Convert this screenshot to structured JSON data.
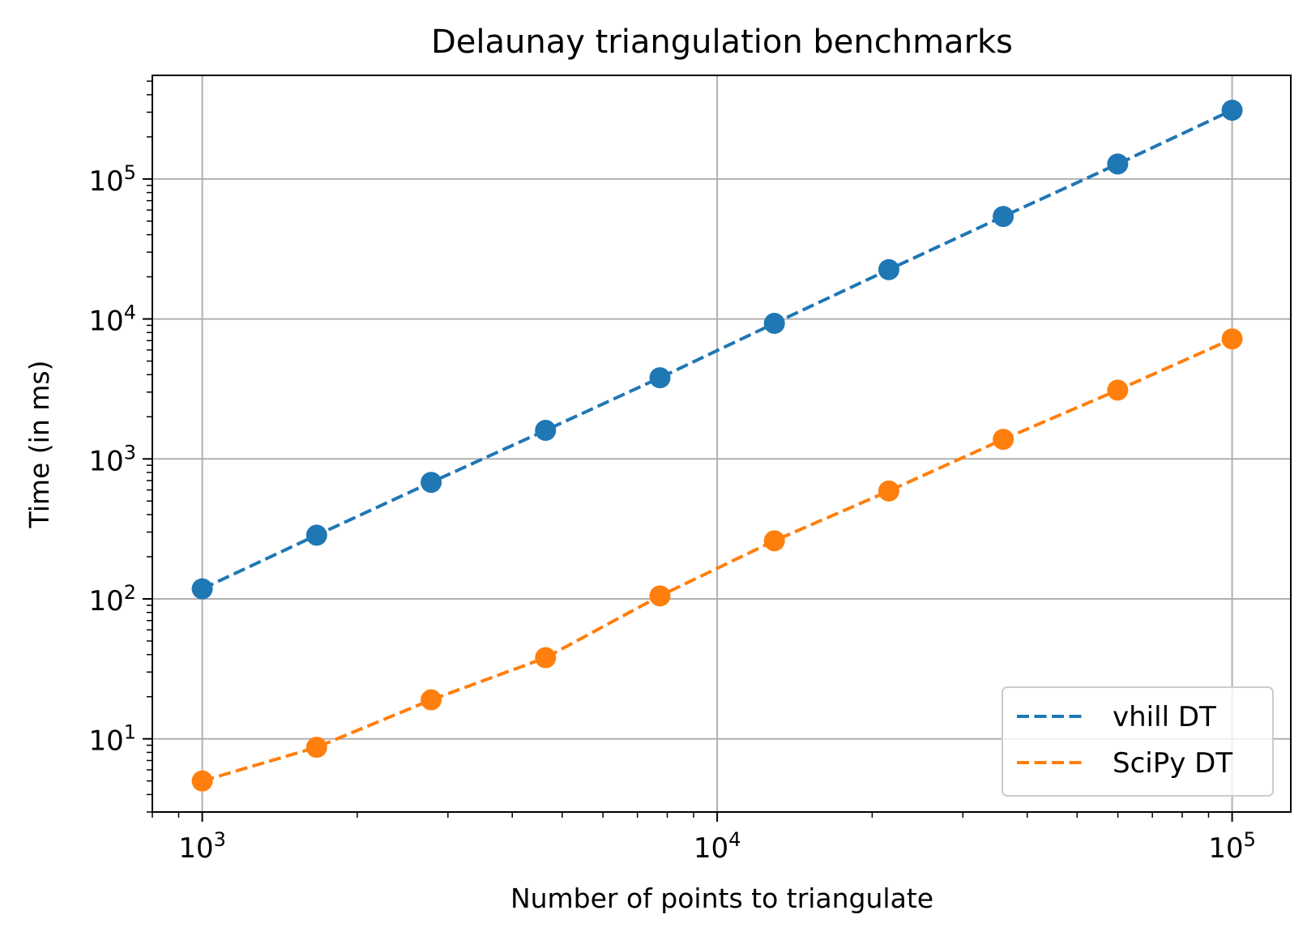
{
  "chart_data": {
    "type": "line",
    "title": "Delaunay triangulation benchmarks",
    "xlabel": "Number of points to triangulate",
    "ylabel": "Time (in ms)",
    "xscale": "log",
    "yscale": "log",
    "xlim": [
      800,
      130000
    ],
    "ylim": [
      3,
      550000
    ],
    "grid": true,
    "legend_position": "lower-right",
    "x": [
      1000,
      1668,
      2783,
      4642,
      7743,
      12915,
      21544,
      35938,
      59948,
      100000
    ],
    "xticks": [
      {
        "base": "10",
        "exp": "3",
        "value": 1000
      },
      {
        "base": "10",
        "exp": "4",
        "value": 10000
      },
      {
        "base": "10",
        "exp": "5",
        "value": 100000
      }
    ],
    "yticks": [
      {
        "base": "10",
        "exp": "1",
        "value": 10
      },
      {
        "base": "10",
        "exp": "2",
        "value": 100
      },
      {
        "base": "10",
        "exp": "3",
        "value": 1000
      },
      {
        "base": "10",
        "exp": "4",
        "value": 10000
      },
      {
        "base": "10",
        "exp": "5",
        "value": 100000
      }
    ],
    "series": [
      {
        "name": "vhill DT",
        "color": "#1f77b4",
        "line_style": "dashed",
        "marker": "circle",
        "values": [
          118,
          285,
          680,
          1600,
          3800,
          9300,
          22500,
          54000,
          128000,
          310000
        ]
      },
      {
        "name": "SciPy DT",
        "color": "#ff7f0e",
        "line_style": "dashed",
        "marker": "circle",
        "values": [
          5.0,
          8.7,
          19,
          38,
          105,
          260,
          590,
          1380,
          3100,
          7200
        ]
      }
    ]
  }
}
